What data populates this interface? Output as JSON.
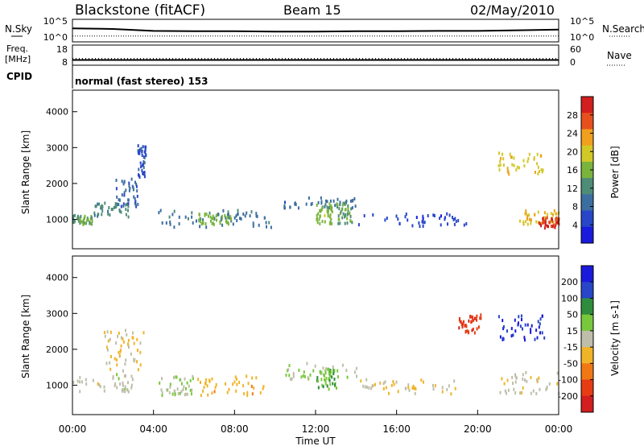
{
  "header": {
    "title": "Blackstone (fitACF)",
    "beam": "Beam 15",
    "date": "02/May/2010"
  },
  "nsky_panel": {
    "left_label": "N.Sky",
    "right_label": "N.Search",
    "left_ticks": [
      "10^5",
      "10^0"
    ],
    "right_ticks": [
      "10^5",
      "10^0"
    ]
  },
  "freq_panel": {
    "left_label_line1": "Freq.",
    "left_label_line2": "[MHz]",
    "right_label": "Nave",
    "left_ticks": [
      "18",
      "8"
    ],
    "right_ticks": [
      "60",
      "0"
    ]
  },
  "cpid_panel": {
    "label": "CPID",
    "value": "normal (fast stereo) 153"
  },
  "colors": {
    "power_scale": [
      "#1a1adc",
      "#2846c8",
      "#3c6ea0",
      "#4f8c78",
      "#7ab43c",
      "#d2c828",
      "#f0a01e",
      "#e6501e",
      "#d21e1e"
    ],
    "velocity_scale": [
      "#1a1adc",
      "#2846c8",
      "#2e8c3c",
      "#78c83c",
      "#bebeaa",
      "#f0b428",
      "#f07814",
      "#e63c14",
      "#d21e1e"
    ]
  },
  "chart_data": [
    {
      "type": "heatmap",
      "title": "Power",
      "xlabel": "",
      "ylabel": "Slant Range [km]",
      "xlim_hours": [
        0,
        24
      ],
      "ylim": [
        180,
        4600
      ],
      "yticks": [
        1000,
        2000,
        3000,
        4000
      ],
      "colorbar_label": "Power [dB]",
      "colorbar_ticks": [
        "28",
        "24",
        "20",
        "16",
        "12",
        "8",
        "4"
      ],
      "colorbar_range": [
        0,
        32
      ],
      "regions": [
        {
          "t": [
            0.0,
            1.0
          ],
          "r": [
            900,
            1150
          ],
          "v": 14
        },
        {
          "t": [
            1.0,
            2.8
          ],
          "r": [
            1100,
            1500
          ],
          "v": 12
        },
        {
          "t": [
            2.0,
            3.2
          ],
          "r": [
            1400,
            2200
          ],
          "v": 8
        },
        {
          "t": [
            3.2,
            3.6
          ],
          "r": [
            2200,
            3100
          ],
          "v": 6
        },
        {
          "t": [
            4.1,
            9.8
          ],
          "r": [
            800,
            1300
          ],
          "v": 10
        },
        {
          "t": [
            6.2,
            7.8
          ],
          "r": [
            900,
            1200
          ],
          "v": 16
        },
        {
          "t": [
            10.4,
            14.0
          ],
          "r": [
            1350,
            1650
          ],
          "v": 9
        },
        {
          "t": [
            12.0,
            12.8
          ],
          "r": [
            900,
            1500
          ],
          "v": 16
        },
        {
          "t": [
            13.0,
            13.8
          ],
          "r": [
            900,
            1500
          ],
          "v": 14
        },
        {
          "t": [
            14.0,
            19.5
          ],
          "r": [
            850,
            1200
          ],
          "v": 5
        },
        {
          "t": [
            21.0,
            23.2
          ],
          "r": [
            2300,
            2900
          ],
          "v": 20
        },
        {
          "t": [
            22.0,
            24.0
          ],
          "r": [
            900,
            1300
          ],
          "v": 22
        },
        {
          "t": [
            23.0,
            24.0
          ],
          "r": [
            800,
            1100
          ],
          "v": 28
        }
      ]
    },
    {
      "type": "heatmap",
      "title": "Velocity",
      "xlabel": "Time UT",
      "ylabel": "Slant Range [km]",
      "xlim_hours": [
        0,
        24
      ],
      "ylim": [
        180,
        4600
      ],
      "yticks": [
        1000,
        2000,
        3000,
        4000
      ],
      "xticks": [
        "00:00",
        "04:00",
        "08:00",
        "12:00",
        "16:00",
        "20:00",
        "00:00"
      ],
      "colorbar_label": "Velocity [m s-1]",
      "colorbar_ticks": [
        "200",
        "100",
        "50",
        "15",
        "-15",
        "-50",
        "-100",
        "-200"
      ],
      "colorbar_range": [
        -250,
        250
      ],
      "regions": [
        {
          "t": [
            0.0,
            3.0
          ],
          "r": [
            850,
            1350
          ],
          "v": 0
        },
        {
          "t": [
            1.5,
            3.5
          ],
          "r": [
            1400,
            2600
          ],
          "v": -30
        },
        {
          "t": [
            4.1,
            6.0
          ],
          "r": [
            750,
            1300
          ],
          "v": 30
        },
        {
          "t": [
            6.0,
            9.5
          ],
          "r": [
            750,
            1300
          ],
          "v": -60
        },
        {
          "t": [
            10.5,
            14.0
          ],
          "r": [
            1200,
            1650
          ],
          "v": 30
        },
        {
          "t": [
            12.0,
            13.0
          ],
          "r": [
            900,
            1500
          ],
          "v": 70
        },
        {
          "t": [
            14.0,
            19.0
          ],
          "r": [
            800,
            1200
          ],
          "v": -25
        },
        {
          "t": [
            19.0,
            20.2
          ],
          "r": [
            2500,
            3000
          ],
          "v": -180
        },
        {
          "t": [
            21.0,
            23.3
          ],
          "r": [
            2300,
            3000
          ],
          "v": 200
        },
        {
          "t": [
            21.0,
            24.0
          ],
          "r": [
            800,
            1400
          ],
          "v": -10
        }
      ]
    },
    {
      "type": "line",
      "title": "N.Sky / N.Search",
      "x_hours": [
        0,
        2,
        4,
        6,
        8,
        10,
        12,
        14,
        16,
        18,
        20,
        22,
        24
      ],
      "series": [
        {
          "name": "N.Sky",
          "values": [
            3.2,
            3.0,
            2.4,
            2.3,
            2.3,
            2.2,
            2.2,
            2.3,
            2.3,
            2.4,
            2.4,
            2.6,
            2.8
          ]
        },
        {
          "name": "N.Search",
          "values": [
            0.8,
            0.8,
            0.8,
            0.8,
            0.8,
            0.8,
            0.8,
            0.8,
            0.8,
            0.8,
            0.8,
            0.8,
            0.8
          ]
        }
      ]
    },
    {
      "type": "line",
      "title": "Freq / Nave",
      "x_hours": [
        0,
        24
      ],
      "series": [
        {
          "name": "Freq.",
          "values": [
            10.5,
            10.5
          ]
        },
        {
          "name": "Nave",
          "values": [
            22,
            22
          ]
        }
      ]
    }
  ]
}
